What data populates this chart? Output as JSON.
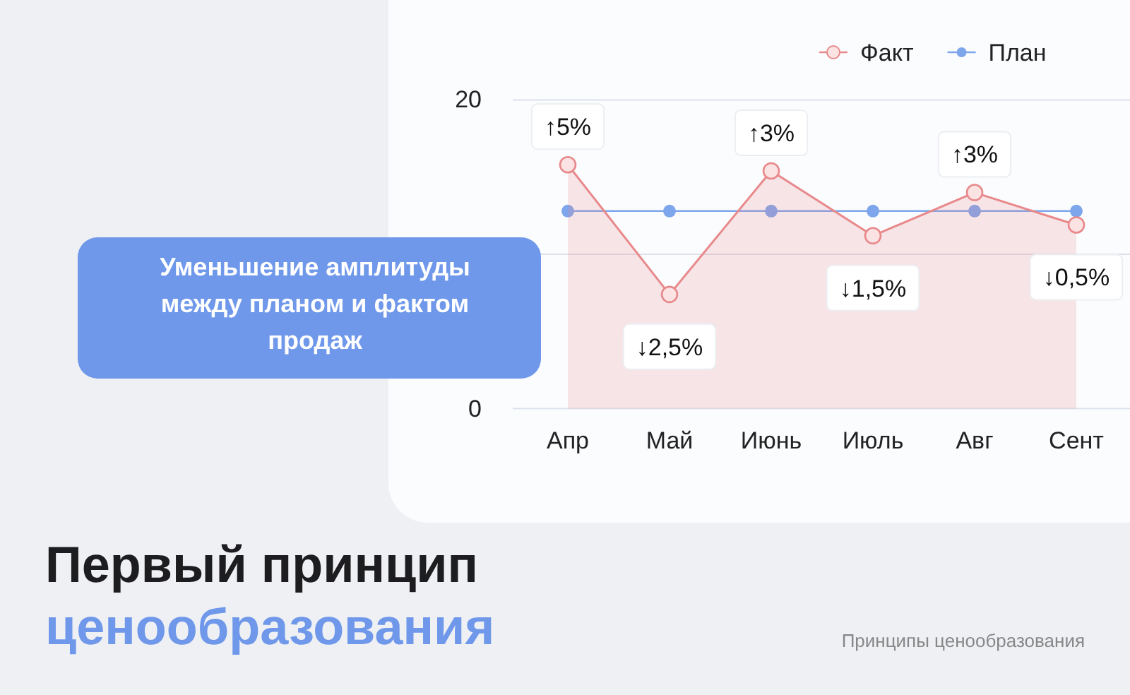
{
  "chart_data": {
    "type": "line",
    "title": "Первый принцип",
    "subtitle": "ценообразования",
    "categories": [
      "Апр",
      "Май",
      "Июнь",
      "Июль",
      "Авг",
      "Сент"
    ],
    "series": [
      {
        "name": "Факт",
        "color": "#e8898b",
        "values": [
          15.8,
          7.4,
          15.4,
          11.2,
          14.0,
          11.9
        ],
        "type": "area"
      },
      {
        "name": "План",
        "color": "#7ea6ec",
        "values": [
          12.8,
          12.8,
          12.8,
          12.8,
          12.8,
          12.8
        ]
      }
    ],
    "ylim": [
      0,
      20
    ],
    "yticks": [
      0,
      {
        "value": 10,
        "label": null
      },
      20
    ],
    "grid": "y",
    "legend": "top right",
    "marker": "circle",
    "annotations": [
      {
        "text": "↑5%",
        "x": "Апр",
        "y": 15.8
      },
      {
        "text": "↓2,5%",
        "x": "Май",
        "y": 7.4
      },
      {
        "text": "↑3%",
        "x": "Июнь",
        "y": 15.4
      },
      {
        "text": "↓1,5%",
        "x": "Июль",
        "y": 11.2
      },
      {
        "text": "↑3%",
        "x": "Авг",
        "y": 14.0
      },
      {
        "text": "↓0,5%",
        "x": "Сент",
        "y": 11.9
      },
      "Уменьшение амплитуды между планом и фактом продаж",
      "Принципы ценообразования"
    ]
  }
}
